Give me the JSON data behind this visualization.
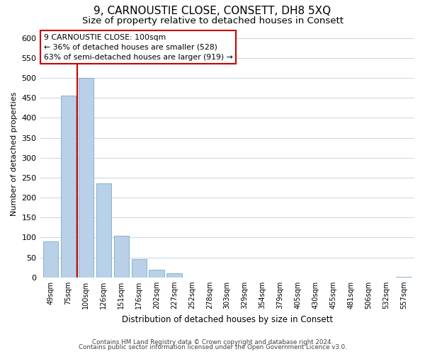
{
  "title": "9, CARNOUSTIE CLOSE, CONSETT, DH8 5XQ",
  "subtitle": "Size of property relative to detached houses in Consett",
  "xlabel": "Distribution of detached houses by size in Consett",
  "ylabel": "Number of detached properties",
  "categories": [
    "49sqm",
    "75sqm",
    "100sqm",
    "126sqm",
    "151sqm",
    "176sqm",
    "202sqm",
    "227sqm",
    "252sqm",
    "278sqm",
    "303sqm",
    "329sqm",
    "354sqm",
    "379sqm",
    "405sqm",
    "430sqm",
    "455sqm",
    "481sqm",
    "506sqm",
    "532sqm",
    "557sqm"
  ],
  "values": [
    90,
    455,
    500,
    235,
    105,
    45,
    20,
    10,
    0,
    0,
    0,
    0,
    0,
    0,
    0,
    0,
    0,
    0,
    0,
    0,
    2
  ],
  "highlight_index": 2,
  "bar_color": "#b8d0e8",
  "bar_edge_color": "#7aaac8",
  "highlight_line_color": "#cc0000",
  "ylim": [
    0,
    620
  ],
  "yticks": [
    0,
    50,
    100,
    150,
    200,
    250,
    300,
    350,
    400,
    450,
    500,
    550,
    600
  ],
  "annotation_title": "9 CARNOUSTIE CLOSE: 100sqm",
  "annotation_line1": "← 36% of detached houses are smaller (528)",
  "annotation_line2": "63% of semi-detached houses are larger (919) →",
  "annotation_box_color": "#ffffff",
  "annotation_box_edge": "#cc0000",
  "footer_line1": "Contains HM Land Registry data © Crown copyright and database right 2024.",
  "footer_line2": "Contains public sector information licensed under the Open Government Licence v3.0.",
  "background_color": "#ffffff",
  "grid_color": "#c8d4e4",
  "title_fontsize": 11,
  "subtitle_fontsize": 9.5
}
